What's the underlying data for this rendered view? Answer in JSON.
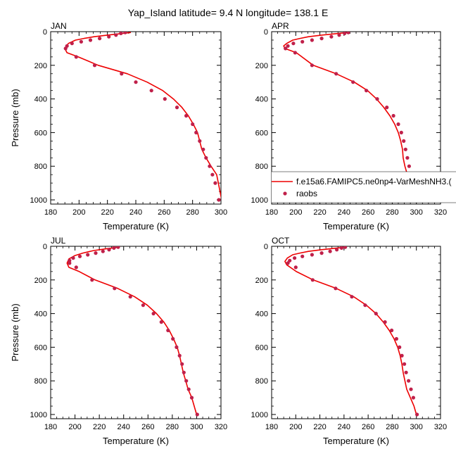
{
  "title": "Yap_Island  latitude= 9.4 N longitude= 138.1 E",
  "colors": {
    "model": "#ee0000",
    "raobs": "#c0204a"
  },
  "legend": {
    "model_label": "f.e15a6.FAMIPC5.ne0np4-VarMeshNH3.(",
    "raobs_label": "raobs",
    "placement": "lower-right of APR panel"
  },
  "chart_data": [
    {
      "type": "line",
      "panel_label": "JAN",
      "xlabel": "Temperature (K)",
      "ylabel": "Pressure (mb)",
      "xlim": [
        180,
        300
      ],
      "ylim": [
        1025,
        0
      ],
      "xticks": [
        "180",
        "200",
        "220",
        "240",
        "260",
        "280",
        "300"
      ],
      "yticks": [
        "0",
        "200",
        "400",
        "600",
        "800",
        "1000"
      ],
      "series": [
        {
          "kind": "model",
          "x": [
            236.5,
            220.5,
            210.5,
            203.5,
            197.5,
            192.5,
            190.0,
            191.5,
            199.5,
            213.5,
            234.0,
            248.0,
            259.0,
            266.5,
            272.5,
            277.0,
            280.5,
            283.5,
            286.5,
            289.5,
            293.0,
            297.0,
            300.5
          ],
          "y": [
            5,
            20,
            30,
            40,
            50,
            70,
            100,
            125,
            150,
            200,
            250,
            300,
            350,
            400,
            450,
            500,
            550,
            600,
            700,
            750,
            800,
            850,
            1000
          ]
        },
        {
          "kind": "raobs",
          "x": [
            232.5,
            229.5,
            226.0,
            221.0,
            214.5,
            208.0,
            201.5,
            195.0,
            191.5,
            190.5,
            198.0,
            211.0,
            230.0,
            240.0,
            251.0,
            260.5,
            269.0,
            275.5,
            280.0,
            282.5,
            285.0,
            287.5,
            289.5,
            292.0,
            294.0,
            296.0,
            298.5
          ],
          "y": [
            5,
            10,
            20,
            30,
            40,
            50,
            60,
            70,
            85,
            100,
            150,
            200,
            250,
            300,
            350,
            400,
            450,
            500,
            550,
            600,
            650,
            700,
            750,
            800,
            850,
            900,
            1000
          ]
        }
      ]
    },
    {
      "type": "line",
      "panel_label": "APR",
      "xlabel": "Temperature (K)",
      "ylabel": "",
      "xlim": [
        180,
        320
      ],
      "ylim": [
        1025,
        0
      ],
      "xticks": [
        "180",
        "200",
        "220",
        "240",
        "260",
        "280",
        "300",
        "320"
      ],
      "yticks": [
        "0",
        "200",
        "400",
        "600",
        "800",
        "1000"
      ],
      "series": [
        {
          "kind": "model",
          "x": [
            243.0,
            222.0,
            210.5,
            203.5,
            197.5,
            192.5,
            190.0,
            191.0,
            200.5,
            214.5,
            233.5,
            248.5,
            259.5,
            267.0,
            273.0,
            278.0,
            282.0,
            285.0,
            287.0,
            288.5,
            289.0,
            290.5,
            292.5,
            295.5,
            298.5,
            300.5
          ],
          "y": [
            5,
            20,
            30,
            40,
            50,
            70,
            85,
            100,
            125,
            200,
            250,
            300,
            350,
            400,
            450,
            500,
            550,
            600,
            650,
            700,
            750,
            800,
            850,
            900,
            950,
            1000
          ]
        },
        {
          "kind": "raobs",
          "x": [
            243.5,
            240.5,
            236.0,
            229.5,
            221.5,
            213.5,
            205.5,
            198.0,
            193.5,
            191.5,
            199.5,
            213.5,
            233.5,
            247.5,
            258.5,
            267.5,
            275.5,
            281.0,
            285.0,
            287.5,
            289.5,
            291.0,
            292.5,
            294.0,
            296.0,
            298.5,
            301.5
          ],
          "y": [
            5,
            10,
            20,
            30,
            40,
            50,
            60,
            70,
            85,
            100,
            125,
            200,
            250,
            300,
            350,
            400,
            450,
            500,
            550,
            600,
            650,
            700,
            750,
            800,
            850,
            900,
            1000
          ]
        }
      ]
    },
    {
      "type": "line",
      "panel_label": "JUL",
      "xlabel": "Temperature (K)",
      "ylabel": "Pressure (mb)",
      "xlim": [
        180,
        320
      ],
      "ylim": [
        1025,
        0
      ],
      "xticks": [
        "180",
        "200",
        "220",
        "240",
        "260",
        "280",
        "300",
        "320"
      ],
      "yticks": [
        "0",
        "200",
        "400",
        "600",
        "800",
        "1000"
      ],
      "series": [
        {
          "kind": "model",
          "x": [
            236.0,
            225.5,
            215.5,
            206.5,
            200.0,
            195.0,
            193.5,
            195.0,
            203.5,
            216.5,
            235.0,
            249.0,
            259.5,
            267.0,
            273.0,
            277.5,
            281.0,
            284.0,
            286.0,
            287.5,
            289.0,
            291.0,
            293.0,
            296.0,
            300.0
          ],
          "y": [
            5,
            15,
            25,
            40,
            55,
            75,
            100,
            125,
            150,
            200,
            250,
            300,
            350,
            400,
            450,
            500,
            550,
            600,
            650,
            700,
            750,
            800,
            850,
            900,
            1000
          ]
        },
        {
          "kind": "raobs",
          "x": [
            235.5,
            232.0,
            228.0,
            223.0,
            217.0,
            210.5,
            204.0,
            198.5,
            195.5,
            195.5,
            201.0,
            214.0,
            232.5,
            245.5,
            256.0,
            264.5,
            271.0,
            276.5,
            280.5,
            283.5,
            286.0,
            288.0,
            289.5,
            291.5,
            293.5,
            296.0,
            300.5
          ],
          "y": [
            5,
            10,
            20,
            30,
            40,
            50,
            60,
            70,
            85,
            100,
            125,
            200,
            250,
            300,
            350,
            400,
            450,
            500,
            550,
            600,
            650,
            700,
            750,
            800,
            850,
            900,
            1000
          ]
        }
      ]
    },
    {
      "type": "line",
      "panel_label": "OCT",
      "xlabel": "Temperature (K)",
      "ylabel": "",
      "xlim": [
        180,
        320
      ],
      "ylim": [
        1025,
        0
      ],
      "xticks": [
        "180",
        "200",
        "220",
        "240",
        "260",
        "280",
        "300",
        "320"
      ],
      "yticks": [
        "0",
        "200",
        "400",
        "600",
        "800",
        "1000"
      ],
      "series": [
        {
          "kind": "model",
          "x": [
            241.5,
            221.5,
            210.5,
            203.5,
            197.5,
            193.0,
            191.0,
            192.5,
            200.5,
            214.5,
            233.5,
            248.0,
            258.5,
            266.5,
            272.5,
            277.5,
            281.5,
            284.5,
            286.5,
            288.0,
            289.0,
            290.5,
            292.0,
            295.0,
            298.0,
            300.0
          ],
          "y": [
            5,
            20,
            30,
            40,
            50,
            70,
            90,
            110,
            150,
            200,
            250,
            300,
            350,
            400,
            450,
            500,
            550,
            600,
            650,
            700,
            750,
            800,
            850,
            900,
            950,
            1000
          ]
        },
        {
          "kind": "raobs",
          "x": [
            241.0,
            238.0,
            234.0,
            228.5,
            221.5,
            213.5,
            205.5,
            199.0,
            195.0,
            193.5,
            200.0,
            214.0,
            233.0,
            246.5,
            257.5,
            266.5,
            274.0,
            279.5,
            283.5,
            286.0,
            288.0,
            290.0,
            291.5,
            293.5,
            295.5,
            297.5,
            300.5
          ],
          "y": [
            5,
            10,
            20,
            30,
            40,
            50,
            60,
            70,
            85,
            100,
            125,
            200,
            250,
            300,
            350,
            400,
            450,
            500,
            550,
            600,
            650,
            700,
            750,
            800,
            850,
            900,
            1000
          ]
        }
      ]
    }
  ]
}
